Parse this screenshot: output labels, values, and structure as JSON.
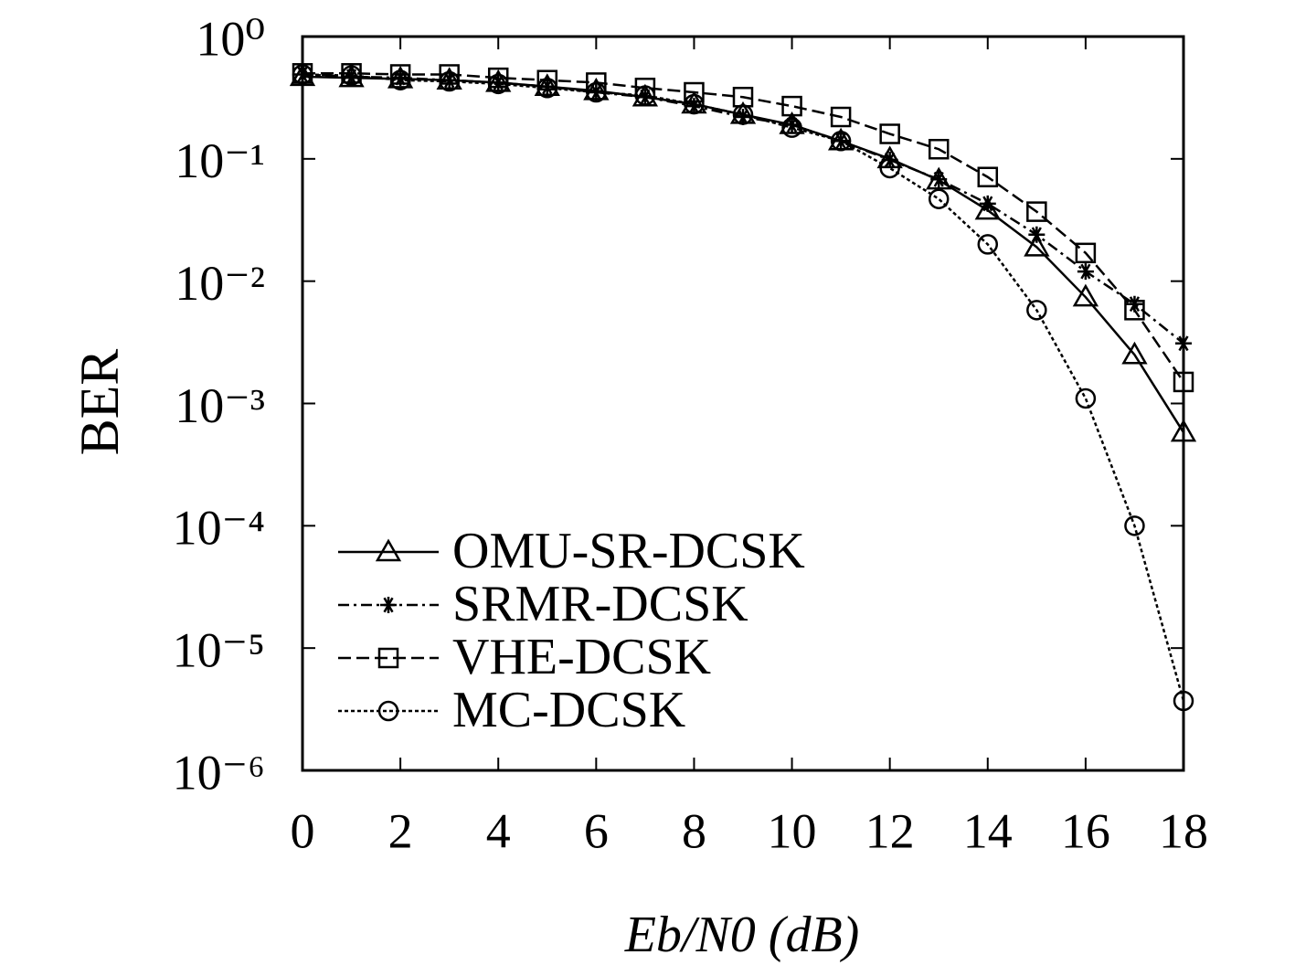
{
  "chart_data": {
    "type": "line",
    "x_label": "Eb/N0 (dB)",
    "y_label": "BER",
    "log_y": true,
    "legend": "lower-left",
    "x": [
      0,
      1,
      2,
      3,
      4,
      5,
      6,
      7,
      8,
      9,
      10,
      11,
      12,
      13,
      14,
      15,
      16,
      17,
      18
    ],
    "xlim": [
      0,
      18
    ],
    "xticks": [
      0,
      2,
      4,
      6,
      8,
      10,
      12,
      14,
      16,
      18
    ],
    "ylim": [
      1e-06,
      1
    ],
    "yticks": [
      {
        "value": 1,
        "label": "10⁰"
      },
      {
        "value": 0.1,
        "label": "10⁻¹"
      },
      {
        "value": 0.01,
        "label": "10⁻²"
      },
      {
        "value": 0.001,
        "label": "10⁻³"
      },
      {
        "value": 0.0001,
        "label": "10⁻⁴"
      },
      {
        "value": 1e-05,
        "label": "10⁻⁵"
      },
      {
        "value": 1e-06,
        "label": "10⁻⁶"
      }
    ],
    "series": [
      {
        "name": "OMU-SR-DCSK",
        "color": "#000000",
        "marker": "triangle",
        "dash": "solid",
        "values": [
          0.47,
          0.46,
          0.45,
          0.44,
          0.42,
          0.39,
          0.36,
          0.32,
          0.28,
          0.23,
          0.19,
          0.14,
          0.1,
          0.067,
          0.038,
          0.019,
          0.0074,
          0.0025,
          0.00058
        ]
      },
      {
        "name": "SRMR-DCSK",
        "color": "#000000",
        "marker": "star",
        "dash": "dashdot",
        "values": [
          0.49,
          0.47,
          0.46,
          0.44,
          0.42,
          0.39,
          0.35,
          0.32,
          0.27,
          0.22,
          0.19,
          0.14,
          0.098,
          0.068,
          0.043,
          0.024,
          0.012,
          0.0065,
          0.0031
        ]
      },
      {
        "name": "VHE-DCSK",
        "color": "#000000",
        "marker": "square",
        "dash": "dashed",
        "values": [
          0.5,
          0.5,
          0.49,
          0.49,
          0.46,
          0.44,
          0.42,
          0.38,
          0.35,
          0.32,
          0.27,
          0.22,
          0.16,
          0.12,
          0.071,
          0.037,
          0.017,
          0.0058,
          0.0015
        ]
      },
      {
        "name": "MC-DCSK",
        "color": "#000000",
        "marker": "circle",
        "dash": "dotted",
        "values": [
          0.49,
          0.48,
          0.44,
          0.43,
          0.41,
          0.38,
          0.35,
          0.33,
          0.28,
          0.23,
          0.18,
          0.14,
          0.084,
          0.047,
          0.02,
          0.0058,
          0.0011,
          0.0001,
          3.7e-06
        ]
      }
    ]
  }
}
